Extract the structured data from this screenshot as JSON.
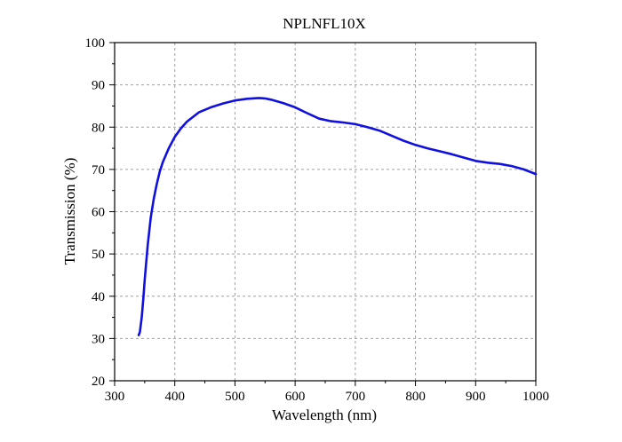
{
  "chart_data": {
    "type": "line",
    "title": "NPLNFL10X",
    "xlabel": "Wavelength (nm)",
    "ylabel": "Transmission (%)",
    "xlim": [
      300,
      1000
    ],
    "ylim": [
      20,
      100
    ],
    "xticks": [
      300,
      400,
      500,
      600,
      700,
      800,
      900,
      1000
    ],
    "yticks": [
      20,
      30,
      40,
      50,
      60,
      70,
      80,
      90,
      100
    ],
    "grid": true,
    "series": [
      {
        "color": "#1010e0",
        "x": [
          340,
          342,
          345,
          348,
          350,
          355,
          360,
          365,
          370,
          375,
          380,
          390,
          400,
          410,
          420,
          440,
          460,
          480,
          500,
          520,
          540,
          550,
          560,
          580,
          600,
          620,
          640,
          660,
          680,
          700,
          720,
          740,
          760,
          780,
          800,
          820,
          840,
          860,
          880,
          900,
          920,
          940,
          960,
          980,
          1000
        ],
        "y": [
          30.8,
          31.5,
          35.0,
          40.0,
          44.0,
          52.0,
          58.5,
          63.0,
          66.5,
          69.5,
          71.7,
          75.0,
          77.7,
          79.7,
          81.3,
          83.5,
          84.7,
          85.6,
          86.3,
          86.7,
          86.9,
          86.8,
          86.5,
          85.7,
          84.7,
          83.3,
          82.0,
          81.4,
          81.1,
          80.7,
          80.0,
          79.2,
          78.0,
          76.8,
          75.8,
          75.0,
          74.3,
          73.6,
          72.8,
          72.0,
          71.6,
          71.3,
          70.8,
          70.0,
          68.9
        ]
      }
    ]
  }
}
